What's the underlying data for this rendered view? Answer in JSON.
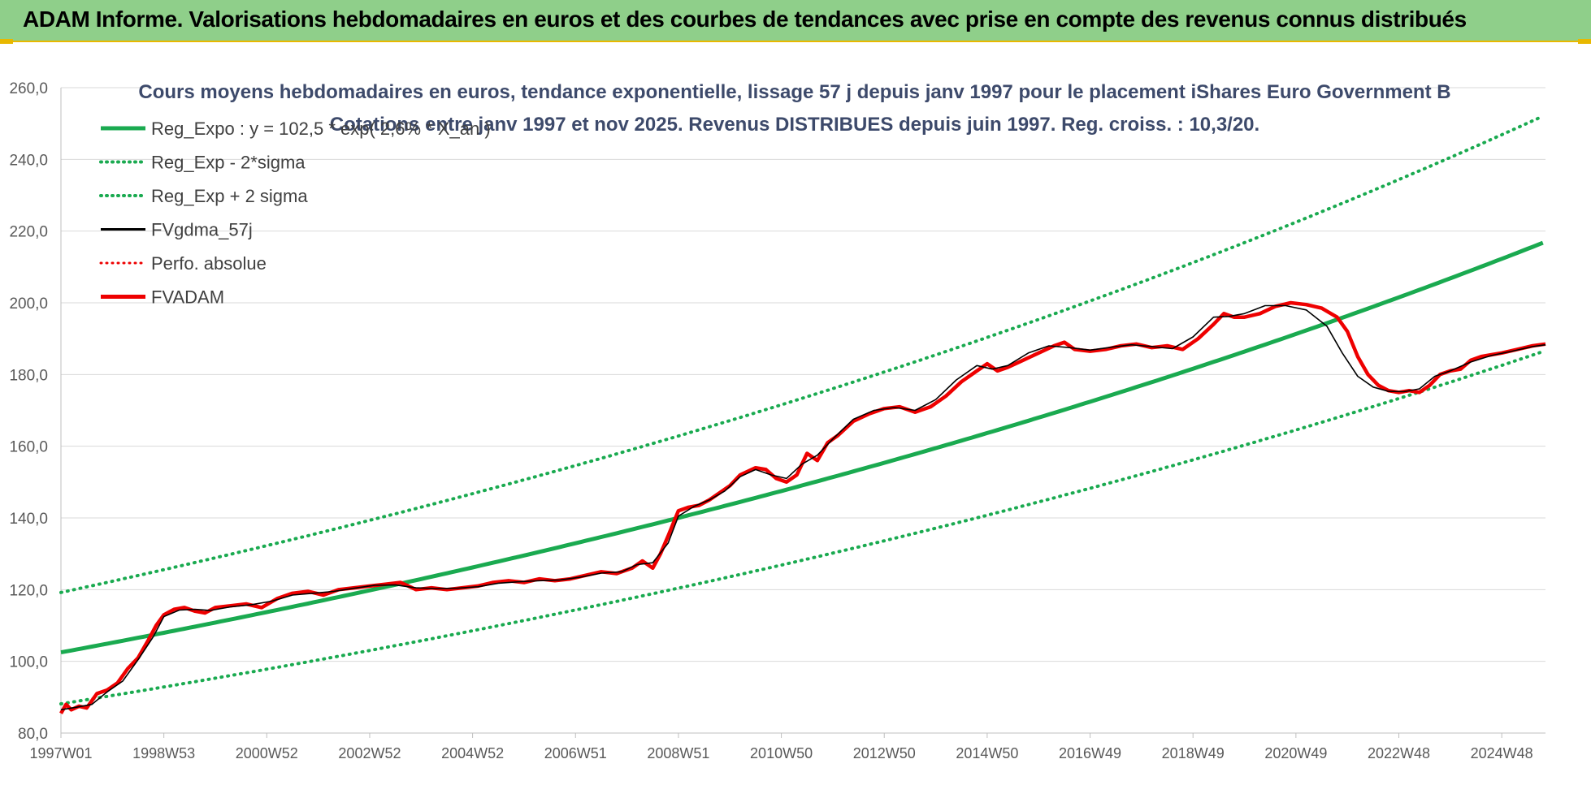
{
  "banner": {
    "title": "ADAM Informe. Valorisations hebdomadaires en euros et des courbes de tendances avec prise en compte des revenus connus distribués"
  },
  "colors": {
    "banner_bg": "#8fcf8a",
    "accent": "#e8b800",
    "trend": "#1aaa50",
    "smoothed": "#000000",
    "fvadam": "#ee0000",
    "grid": "#d9d9d9",
    "title_text": "#3d4a6b"
  },
  "chart_data": {
    "type": "line",
    "title_line1": "Cours moyens hebdomadaires en euros, tendance exponentielle, lissage 57 j depuis janv 1997 pour le placement iShares Euro Government B",
    "title_line2": "Cotations entre janv 1997 et nov 2025. Revenus DISTRIBUES depuis juin 1997. Reg. croiss. : 10,3/20.",
    "ylim": [
      80,
      260
    ],
    "y_ticks": [
      "80,0",
      "100,0",
      "120,0",
      "140,0",
      "160,0",
      "180,0",
      "200,0",
      "220,0",
      "240,0",
      "260,0"
    ],
    "x_range": [
      1997.0,
      2025.85
    ],
    "x_ticks": [
      {
        "label": "1997W01",
        "t": 1997.0
      },
      {
        "label": "1998W53",
        "t": 1999.0
      },
      {
        "label": "2000W52",
        "t": 2001.0
      },
      {
        "label": "2002W52",
        "t": 2003.0
      },
      {
        "label": "2004W52",
        "t": 2005.0
      },
      {
        "label": "2006W51",
        "t": 2007.0
      },
      {
        "label": "2008W51",
        "t": 2009.0
      },
      {
        "label": "2010W50",
        "t": 2011.0
      },
      {
        "label": "2012W50",
        "t": 2013.0
      },
      {
        "label": "2014W50",
        "t": 2015.0
      },
      {
        "label": "2016W49",
        "t": 2017.0
      },
      {
        "label": "2018W49",
        "t": 2019.0
      },
      {
        "label": "2020W49",
        "t": 2021.0
      },
      {
        "label": "2022W48",
        "t": 2023.0
      },
      {
        "label": "2024W48",
        "t": 2025.0
      }
    ],
    "grid": true,
    "legend_position": "top-left",
    "legend": [
      {
        "label": "Reg_Expo : y = 102,5 * exp( 2,6% *  X_an )",
        "style": "solid",
        "color": "#1aaa50",
        "width": 5
      },
      {
        "label": "Reg_Exp - 2*sigma",
        "style": "dotted",
        "color": "#1aaa50",
        "width": 4
      },
      {
        "label": "Reg_Exp + 2 sigma",
        "style": "dotted",
        "color": "#1aaa50",
        "width": 4
      },
      {
        "label": "FVgdma_57j",
        "style": "solid",
        "color": "#000000",
        "width": 3
      },
      {
        "label": "Perfo. absolue",
        "style": "dotted",
        "color": "#ee0000",
        "width": 3
      },
      {
        "label": "FVADAM",
        "style": "solid",
        "color": "#ee0000",
        "width": 5
      }
    ],
    "regression": {
      "a": 102.5,
      "rate": 0.026,
      "lower_factor": 0.86,
      "upper_factor": 1.163
    },
    "series": [
      {
        "name": "FVADAM",
        "x": [
          1997.0,
          1997.1,
          1997.2,
          1997.35,
          1997.5,
          1997.7,
          1997.9,
          1998.1,
          1998.3,
          1998.5,
          1998.7,
          1998.85,
          1999.0,
          1999.2,
          1999.4,
          1999.6,
          1999.8,
          2000.0,
          2000.3,
          2000.6,
          2000.9,
          2001.2,
          2001.5,
          2001.8,
          2002.1,
          2002.4,
          2002.7,
          2003.0,
          2003.3,
          2003.6,
          2003.9,
          2004.2,
          2004.5,
          2004.8,
          2005.1,
          2005.4,
          2005.7,
          2006.0,
          2006.3,
          2006.6,
          2006.9,
          2007.2,
          2007.5,
          2007.8,
          2008.1,
          2008.3,
          2008.5,
          2008.65,
          2008.8,
          2009.0,
          2009.2,
          2009.4,
          2009.6,
          2009.8,
          2010.0,
          2010.2,
          2010.5,
          2010.7,
          2010.9,
          2011.1,
          2011.3,
          2011.5,
          2011.7,
          2011.9,
          2012.1,
          2012.4,
          2012.7,
          2013.0,
          2013.3,
          2013.6,
          2013.9,
          2014.2,
          2014.5,
          2014.8,
          2015.0,
          2015.2,
          2015.4,
          2015.7,
          2016.0,
          2016.3,
          2016.5,
          2016.7,
          2017.0,
          2017.3,
          2017.6,
          2017.9,
          2018.2,
          2018.5,
          2018.8,
          2019.1,
          2019.4,
          2019.6,
          2019.8,
          2020.0,
          2020.3,
          2020.6,
          2020.9,
          2021.2,
          2021.5,
          2021.8,
          2022.0,
          2022.2,
          2022.4,
          2022.6,
          2022.8,
          2023.0,
          2023.2,
          2023.4,
          2023.6,
          2023.8,
          2024.0,
          2024.2,
          2024.4,
          2024.6,
          2024.8,
          2025.0,
          2025.3,
          2025.6,
          2025.85
        ],
        "y": [
          85.5,
          88.0,
          86.5,
          87.5,
          87.0,
          91.0,
          92.0,
          94.0,
          98.0,
          101.0,
          106.0,
          110.0,
          113.0,
          114.5,
          115.0,
          114.0,
          113.5,
          115.0,
          115.5,
          116.0,
          115.0,
          117.5,
          119.0,
          119.5,
          118.5,
          120.0,
          120.5,
          121.0,
          121.5,
          122.0,
          120.0,
          120.5,
          120.0,
          120.5,
          121.0,
          122.0,
          122.5,
          122.0,
          123.0,
          122.5,
          123.0,
          124.0,
          125.0,
          124.5,
          126.0,
          128.0,
          126.0,
          130.0,
          135.0,
          142.0,
          143.0,
          143.5,
          145.0,
          147.0,
          149.0,
          152.0,
          154.0,
          153.5,
          151.0,
          150.0,
          152.0,
          158.0,
          156.0,
          161.0,
          163.0,
          167.0,
          169.0,
          170.5,
          171.0,
          169.5,
          171.0,
          174.0,
          178.0,
          181.0,
          183.0,
          181.0,
          182.0,
          184.0,
          186.0,
          188.0,
          189.0,
          187.0,
          186.5,
          187.0,
          188.0,
          188.5,
          187.5,
          188.0,
          187.0,
          190.0,
          194.0,
          197.0,
          196.0,
          196.0,
          197.0,
          199.0,
          200.0,
          199.5,
          198.5,
          196.0,
          192.0,
          185.0,
          180.0,
          177.0,
          175.5,
          175.0,
          175.5,
          175.0,
          177.0,
          180.0,
          181.0,
          181.5,
          184.0,
          185.0,
          185.5,
          186.0,
          187.0,
          188.0,
          188.5
        ]
      },
      {
        "name": "FVgdma_57j",
        "x": [
          1997.0,
          1997.3,
          1997.6,
          1997.9,
          1998.2,
          1998.5,
          1998.8,
          1999.0,
          1999.3,
          1999.6,
          1999.9,
          2000.3,
          2000.7,
          2001.1,
          2001.5,
          2001.9,
          2002.3,
          2002.7,
          2003.1,
          2003.5,
          2003.9,
          2004.3,
          2004.7,
          2005.1,
          2005.5,
          2005.9,
          2006.3,
          2006.7,
          2007.1,
          2007.5,
          2007.9,
          2008.2,
          2008.5,
          2008.8,
          2009.0,
          2009.3,
          2009.6,
          2009.9,
          2010.2,
          2010.5,
          2010.8,
          2011.1,
          2011.4,
          2011.7,
          2012.0,
          2012.4,
          2012.8,
          2013.2,
          2013.6,
          2014.0,
          2014.4,
          2014.8,
          2015.1,
          2015.4,
          2015.8,
          2016.2,
          2016.6,
          2017.0,
          2017.4,
          2017.8,
          2018.2,
          2018.6,
          2019.0,
          2019.4,
          2019.7,
          2020.0,
          2020.4,
          2020.8,
          2021.2,
          2021.6,
          2021.9,
          2022.2,
          2022.5,
          2022.8,
          2023.1,
          2023.4,
          2023.7,
          2024.0,
          2024.4,
          2024.8,
          2025.2,
          2025.6,
          2025.85
        ],
        "y": [
          86.5,
          87.2,
          88.0,
          91.5,
          94.5,
          100.5,
          107.0,
          112.5,
          114.3,
          114.5,
          114.2,
          115.2,
          115.8,
          116.8,
          118.5,
          119.0,
          119.5,
          120.4,
          121.2,
          121.3,
          120.5,
          120.3,
          120.4,
          120.8,
          121.8,
          122.2,
          122.5,
          122.7,
          123.5,
          124.6,
          125.0,
          127.0,
          127.5,
          133.0,
          140.5,
          143.2,
          145.0,
          147.5,
          151.5,
          153.5,
          152.0,
          151.0,
          155.0,
          157.5,
          162.0,
          167.5,
          170.0,
          170.8,
          170.0,
          173.0,
          178.5,
          182.5,
          181.5,
          182.5,
          186.0,
          188.0,
          187.5,
          186.8,
          187.6,
          188.3,
          187.8,
          187.2,
          190.5,
          196.0,
          196.2,
          197.0,
          199.2,
          199.2,
          198.0,
          193.5,
          186.0,
          179.5,
          176.5,
          175.3,
          175.2,
          176.0,
          179.5,
          181.0,
          183.5,
          185.3,
          186.5,
          187.8,
          188.3
        ]
      }
    ]
  }
}
